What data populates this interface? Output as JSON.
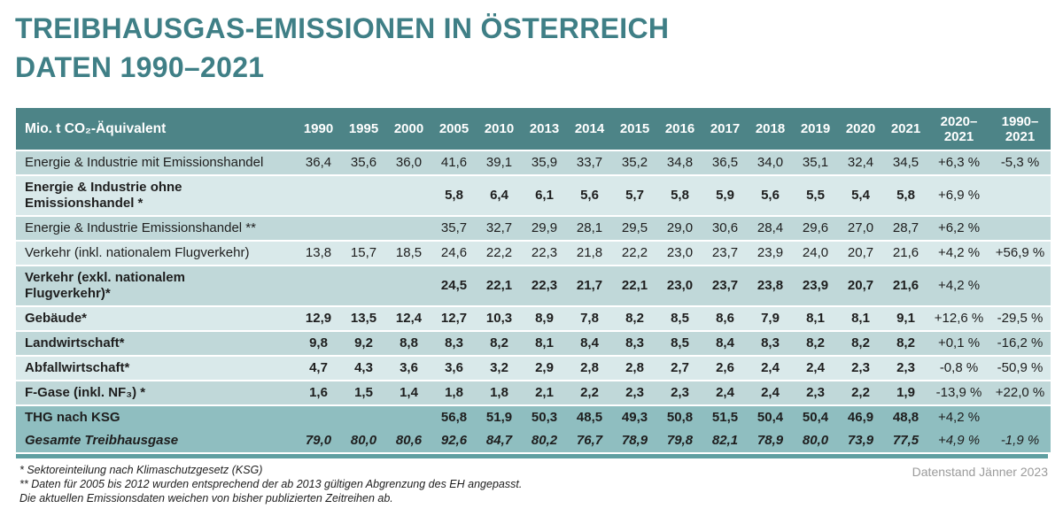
{
  "title": {
    "line1": "TREIBHAUSGAS-EMISSIONEN IN ÖSTERREICH",
    "line2": "DATEN 1990–2021"
  },
  "colors": {
    "title_teal": "#3f7f86",
    "header_bg": "#4d8487",
    "row_mid": "#c0d8d9",
    "row_light": "#d9e9ea",
    "row_total": "#8fbec0",
    "bottom_bar": "#5f9fa1",
    "footer_gray": "#9b9b9b"
  },
  "table": {
    "unit_header": "Mio. t CO₂-Äquivalent",
    "year_columns": [
      "1990",
      "1995",
      "2000",
      "2005",
      "2010",
      "2013",
      "2014",
      "2015",
      "2016",
      "2017",
      "2018",
      "2019",
      "2020",
      "2021"
    ],
    "change_columns": [
      "2020–\n2021",
      "1990–\n2021"
    ],
    "rows": [
      {
        "label": "Energie & Industrie mit Emissionshandel",
        "shade": "mid",
        "bold": false,
        "italic": false,
        "tall": false,
        "merge_below": false,
        "values": [
          "36,4",
          "35,6",
          "36,0",
          "41,6",
          "39,1",
          "35,9",
          "33,7",
          "35,2",
          "34,8",
          "36,5",
          "34,0",
          "35,1",
          "32,4",
          "34,5"
        ],
        "change_2020_2021": "+6,3 %",
        "change_1990_2021": "-5,3 %"
      },
      {
        "label": "Energie & Industrie ohne\nEmissionshandel *",
        "shade": "light",
        "bold": true,
        "italic": false,
        "tall": true,
        "merge_below": false,
        "values": [
          "",
          "",
          "",
          "5,8",
          "6,4",
          "6,1",
          "5,6",
          "5,7",
          "5,8",
          "5,9",
          "5,6",
          "5,5",
          "5,4",
          "5,8"
        ],
        "change_2020_2021": "+6,9 %",
        "change_1990_2021": ""
      },
      {
        "label": "Energie & Industrie Emissionshandel **",
        "shade": "mid",
        "bold": false,
        "italic": false,
        "tall": false,
        "merge_below": false,
        "values": [
          "",
          "",
          "",
          "35,7",
          "32,7",
          "29,9",
          "28,1",
          "29,5",
          "29,0",
          "30,6",
          "28,4",
          "29,6",
          "27,0",
          "28,7"
        ],
        "change_2020_2021": "+6,2 %",
        "change_1990_2021": ""
      },
      {
        "label": "Verkehr (inkl. nationalem Flugverkehr)",
        "shade": "light",
        "bold": false,
        "italic": false,
        "tall": false,
        "merge_below": false,
        "values": [
          "13,8",
          "15,7",
          "18,5",
          "24,6",
          "22,2",
          "22,3",
          "21,8",
          "22,2",
          "23,0",
          "23,7",
          "23,9",
          "24,0",
          "20,7",
          "21,6"
        ],
        "change_2020_2021": "+4,2 %",
        "change_1990_2021": "+56,9 %"
      },
      {
        "label": "Verkehr (exkl. nationalem\nFlugverkehr)*",
        "shade": "mid",
        "bold": true,
        "italic": false,
        "tall": true,
        "merge_below": false,
        "values": [
          "",
          "",
          "",
          "24,5",
          "22,1",
          "22,3",
          "21,7",
          "22,1",
          "23,0",
          "23,7",
          "23,8",
          "23,9",
          "20,7",
          "21,6"
        ],
        "change_2020_2021": "+4,2 %",
        "change_1990_2021": ""
      },
      {
        "label": "Gebäude*",
        "shade": "light",
        "bold": true,
        "italic": false,
        "tall": false,
        "merge_below": false,
        "values": [
          "12,9",
          "13,5",
          "12,4",
          "12,7",
          "10,3",
          "8,9",
          "7,8",
          "8,2",
          "8,5",
          "8,6",
          "7,9",
          "8,1",
          "8,1",
          "9,1"
        ],
        "change_2020_2021": "+12,6 %",
        "change_1990_2021": "-29,5 %"
      },
      {
        "label": "Landwirtschaft*",
        "shade": "mid",
        "bold": true,
        "italic": false,
        "tall": false,
        "merge_below": false,
        "values": [
          "9,8",
          "9,2",
          "8,8",
          "8,3",
          "8,2",
          "8,1",
          "8,4",
          "8,3",
          "8,5",
          "8,4",
          "8,3",
          "8,2",
          "8,2",
          "8,2"
        ],
        "change_2020_2021": "+0,1 %",
        "change_1990_2021": "-16,2 %"
      },
      {
        "label": "Abfallwirtschaft*",
        "shade": "light",
        "bold": true,
        "italic": false,
        "tall": false,
        "merge_below": false,
        "values": [
          "4,7",
          "4,3",
          "3,6",
          "3,6",
          "3,2",
          "2,9",
          "2,8",
          "2,8",
          "2,7",
          "2,6",
          "2,4",
          "2,4",
          "2,3",
          "2,3"
        ],
        "change_2020_2021": "-0,8 %",
        "change_1990_2021": "-50,9 %"
      },
      {
        "label": "F-Gase (inkl. NF₃) *",
        "shade": "mid",
        "bold": true,
        "italic": false,
        "tall": false,
        "merge_below": false,
        "values": [
          "1,6",
          "1,5",
          "1,4",
          "1,8",
          "1,8",
          "2,1",
          "2,2",
          "2,3",
          "2,3",
          "2,4",
          "2,4",
          "2,3",
          "2,2",
          "1,9"
        ],
        "change_2020_2021": "-13,9 %",
        "change_1990_2021": "+22,0 %"
      },
      {
        "label": "THG nach KSG",
        "shade": "dark",
        "bold": true,
        "italic": false,
        "tall": false,
        "merge_below": true,
        "values": [
          "",
          "",
          "",
          "56,8",
          "51,9",
          "50,3",
          "48,5",
          "49,3",
          "50,8",
          "51,5",
          "50,4",
          "50,4",
          "46,9",
          "48,8"
        ],
        "change_2020_2021": "+4,2 %",
        "change_1990_2021": ""
      },
      {
        "label": "Gesamte Treibhausgase",
        "shade": "dark",
        "bold": true,
        "italic": true,
        "tall": false,
        "merge_below": false,
        "values": [
          "79,0",
          "80,0",
          "80,6",
          "92,6",
          "84,7",
          "80,2",
          "76,7",
          "78,9",
          "79,8",
          "82,1",
          "78,9",
          "80,0",
          "73,9",
          "77,5"
        ],
        "change_2020_2021": "+4,9 %",
        "change_1990_2021": "-1,9 %"
      }
    ]
  },
  "footnotes": [
    "* Sektoreinteilung nach Klimaschutzgesetz  (KSG)",
    "** Daten für 2005 bis 2012 wurden entsprechend der ab 2013 gültigen Abgrenzung des EH angepasst.",
    "Die aktuellen Emissionsdaten weichen von bisher publizierten Zeitreihen ab."
  ],
  "datenstand": "Datenstand Jänner 2023"
}
